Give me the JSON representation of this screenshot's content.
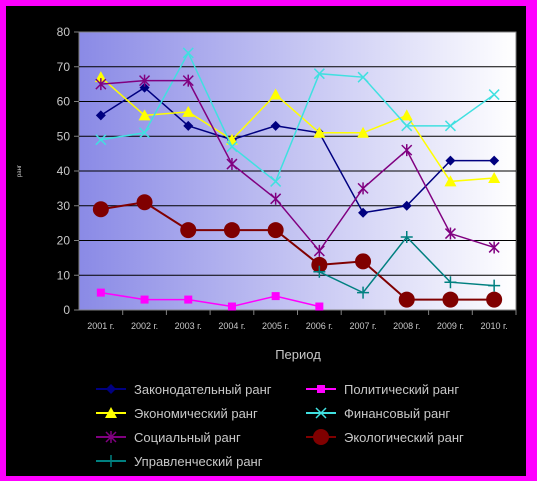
{
  "chart_data": {
    "type": "line",
    "xlabel": "Период",
    "ylabel": "ранг",
    "ylim": [
      0,
      80
    ],
    "yticks": [
      0,
      10,
      20,
      30,
      40,
      50,
      60,
      70,
      80
    ],
    "grid": true,
    "legend_position": "bottom",
    "categories": [
      "2001 г.",
      "2002 г.",
      "2003 г.",
      "2004 г.",
      "2005 г.",
      "2006 г.",
      "2007 г.",
      "2008 г.",
      "2009 г.",
      "2010 г."
    ],
    "series": [
      {
        "name": "Законодательный ранг",
        "color": "#000080",
        "marker": "diamond",
        "values": [
          56,
          64,
          53,
          49,
          53,
          51,
          28,
          30,
          43,
          43
        ]
      },
      {
        "name": "Политический ранг",
        "color": "#ff00ff",
        "marker": "square",
        "values": [
          5,
          3,
          3,
          1,
          4,
          1,
          null,
          null,
          null,
          null
        ]
      },
      {
        "name": "Экономический ранг",
        "color": "#ffff00",
        "marker": "triangle",
        "values": [
          67,
          56,
          57,
          49,
          62,
          51,
          51,
          56,
          37,
          38
        ]
      },
      {
        "name": "Финансовый ранг",
        "color": "#40e0e0",
        "marker": "x",
        "values": [
          49,
          51,
          74,
          47,
          37,
          68,
          67,
          53,
          53,
          62
        ]
      },
      {
        "name": "Социальный ранг",
        "color": "#800080",
        "marker": "star",
        "values": [
          65,
          66,
          66,
          42,
          32,
          17,
          35,
          46,
          22,
          18
        ]
      },
      {
        "name": "Экологический ранг",
        "color": "#800000",
        "marker": "circle",
        "values": [
          29,
          31,
          23,
          23,
          23,
          13,
          14,
          3,
          3,
          3
        ]
      },
      {
        "name": "Управленческий ранг",
        "color": "#008080",
        "marker": "plus",
        "values": [
          null,
          null,
          null,
          null,
          null,
          11,
          5,
          21,
          8,
          7
        ]
      }
    ]
  }
}
